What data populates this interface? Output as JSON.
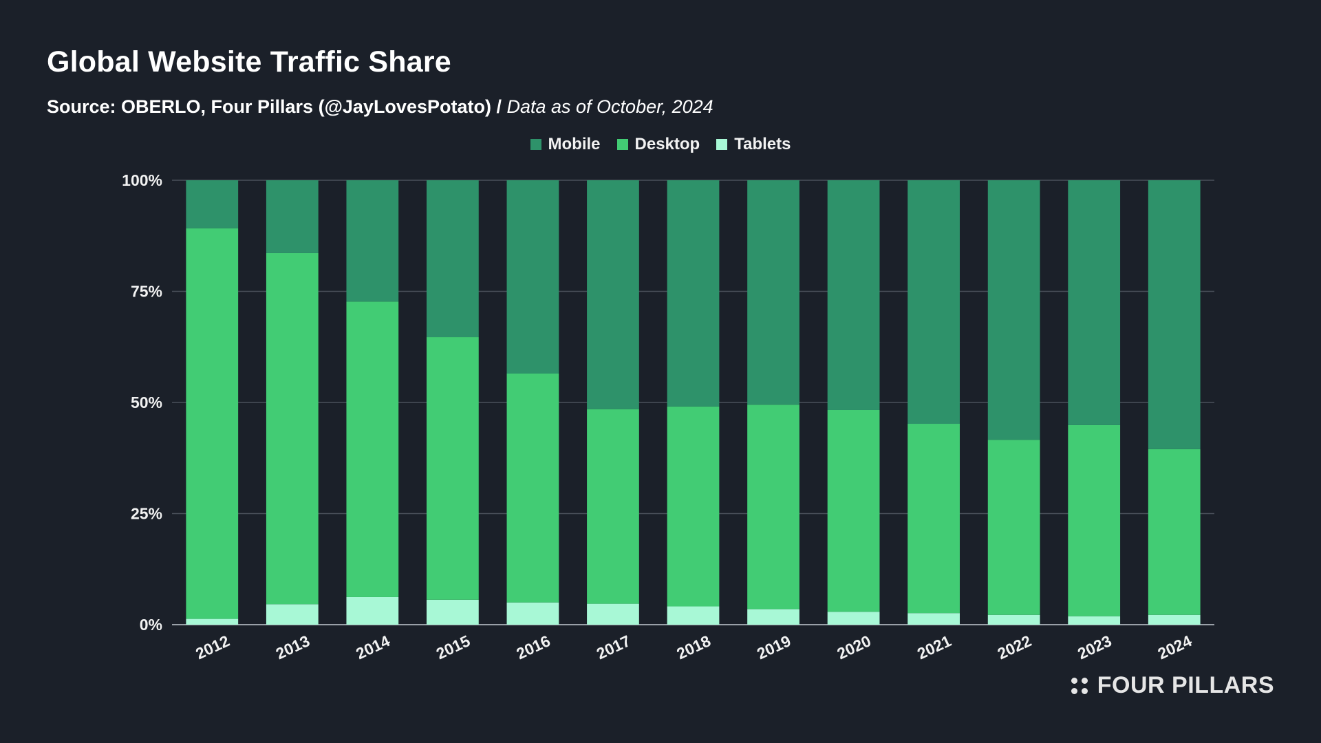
{
  "header": {
    "title": "Global Website Traffic Share",
    "source": "Source: OBERLO, Four Pillars (@JayLovesPotato) /",
    "note": "Data as of October, 2024"
  },
  "brand": {
    "name": "FOUR PILLARS"
  },
  "colors": {
    "background": "#1b2029",
    "mobile": "#2e926a",
    "desktop": "#42cc74",
    "tablets": "#a8f8d6",
    "grid": "#4a505a"
  },
  "chart_data": {
    "type": "bar",
    "stacked": true,
    "title": "Global Website Traffic Share",
    "xlabel": "",
    "ylabel": "",
    "ylim": [
      0,
      100
    ],
    "yticks": [
      "0%",
      "25%",
      "50%",
      "75%",
      "100%"
    ],
    "grid": true,
    "legend_position": "top-center",
    "categories": [
      "2012",
      "2013",
      "2014",
      "2015",
      "2016",
      "2017",
      "2018",
      "2019",
      "2020",
      "2021",
      "2022",
      "2023",
      "2024"
    ],
    "series": [
      {
        "name": "Tablets",
        "color": "#a8f8d6",
        "values": [
          1.3,
          4.6,
          6.2,
          5.6,
          5.0,
          4.7,
          4.1,
          3.5,
          2.9,
          2.6,
          2.2,
          1.9,
          2.2
        ]
      },
      {
        "name": "Desktop",
        "color": "#42cc74",
        "values": [
          87.9,
          79.0,
          66.5,
          59.1,
          51.5,
          43.8,
          45.0,
          46.0,
          45.4,
          42.6,
          39.4,
          43.0,
          37.3
        ]
      },
      {
        "name": "Mobile",
        "color": "#2e926a",
        "values": [
          10.8,
          16.4,
          27.3,
          35.3,
          43.5,
          51.5,
          50.9,
          50.5,
          51.7,
          54.8,
          58.4,
          55.1,
          60.5
        ]
      }
    ],
    "legend_order": [
      "Mobile",
      "Desktop",
      "Tablets"
    ]
  }
}
